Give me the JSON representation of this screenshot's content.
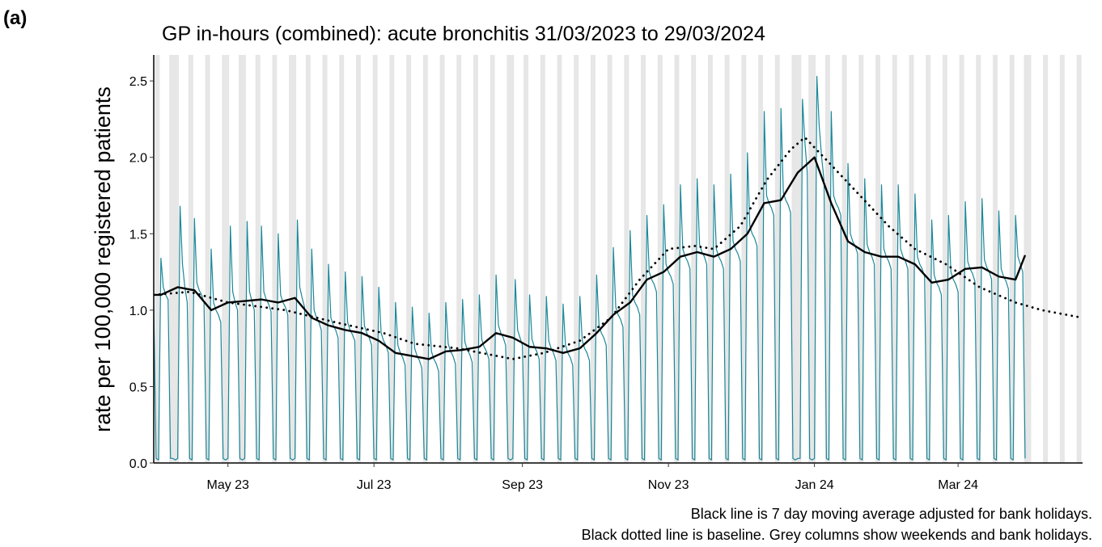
{
  "chart_data": {
    "type": "line",
    "panel_label": "(a)",
    "title": "GP in-hours (combined): acute bronchitis 31/03/2023 to 29/03/2024",
    "y_label": "rate per 100,000 registered patients",
    "annotations": [
      "Black line is 7 day moving average adjusted for bank holidays.",
      "Black dotted line is baseline. Grey columns show weekends and bank holidays."
    ],
    "xlim": [
      "2023-03-31",
      "2024-04-22"
    ],
    "xticks": [
      {
        "value": "2023-05-01",
        "label": "May 23"
      },
      {
        "value": "2023-07-01",
        "label": "Jul 23"
      },
      {
        "value": "2023-09-01",
        "label": "Sep 23"
      },
      {
        "value": "2023-11-01",
        "label": "Nov 23"
      },
      {
        "value": "2024-01-01",
        "label": "Jan 24"
      },
      {
        "value": "2024-03-01",
        "label": "Mar 24"
      }
    ],
    "ylim": [
      0,
      2.67
    ],
    "yticks": [
      {
        "value": 0,
        "label": "0.0"
      },
      0.5,
      {
        "value": 1,
        "label": "1.0"
      },
      1.5,
      {
        "value": 2,
        "label": "2.0"
      },
      2.5
    ],
    "weekend_color": "#e6e6e6",
    "bank_holidays": [
      "2023-04-07",
      "2023-04-10",
      "2023-05-01",
      "2023-05-08",
      "2023-05-29",
      "2023-08-28",
      "2023-12-25",
      "2023-12-26",
      "2024-01-01",
      "2024-03-29"
    ],
    "series": [
      {
        "color": "#1b8798",
        "line_style": "solid",
        "width": 1.2,
        "x": [
          "2023-03-31",
          "2023-04-01",
          "2023-04-02",
          "2023-04-03",
          "2023-04-04",
          "2023-04-05",
          "2023-04-06",
          "2023-04-07",
          "2023-04-08",
          "2023-04-09",
          "2023-04-10",
          "2023-04-11",
          "2023-04-12",
          "2023-04-13",
          "2023-04-14",
          "2023-04-15",
          "2023-04-16",
          "2023-04-17",
          "2023-04-18",
          "2023-04-19",
          "2023-04-20",
          "2023-04-21",
          "2023-04-22",
          "2023-04-23",
          "2023-04-24",
          "2023-04-25",
          "2023-04-26",
          "2023-04-27",
          "2023-04-28",
          "2023-04-29",
          "2023-04-30",
          "2023-05-01",
          "2023-05-02",
          "2023-05-03",
          "2023-05-04",
          "2023-05-05",
          "2023-05-06",
          "2023-05-07",
          "2023-05-08",
          "2023-05-09",
          "2023-05-10",
          "2023-05-11",
          "2023-05-12",
          "2023-05-13",
          "2023-05-14",
          "2023-05-15",
          "2023-05-16",
          "2023-05-17",
          "2023-05-18",
          "2023-05-19",
          "2023-05-20",
          "2023-05-21",
          "2023-05-22",
          "2023-05-23",
          "2023-05-24",
          "2023-05-25",
          "2023-05-26",
          "2023-05-27",
          "2023-05-28",
          "2023-05-29",
          "2023-05-30",
          "2023-05-31",
          "2023-06-01",
          "2023-06-02",
          "2023-06-03",
          "2023-06-04",
          "2023-06-05",
          "2023-06-06",
          "2023-06-07",
          "2023-06-08",
          "2023-06-09",
          "2023-06-10",
          "2023-06-11",
          "2023-06-12",
          "2023-06-13",
          "2023-06-14",
          "2023-06-15",
          "2023-06-16",
          "2023-06-17",
          "2023-06-18",
          "2023-06-19",
          "2023-06-20",
          "2023-06-21",
          "2023-06-22",
          "2023-06-23",
          "2023-06-24",
          "2023-06-25",
          "2023-06-26",
          "2023-06-27",
          "2023-06-28",
          "2023-06-29",
          "2023-06-30",
          "2023-07-01",
          "2023-07-02",
          "2023-07-03",
          "2023-07-04",
          "2023-07-05",
          "2023-07-06",
          "2023-07-07",
          "2023-07-08",
          "2023-07-09",
          "2023-07-10",
          "2023-07-11",
          "2023-07-12",
          "2023-07-13",
          "2023-07-14",
          "2023-07-15",
          "2023-07-16",
          "2023-07-17",
          "2023-07-18",
          "2023-07-19",
          "2023-07-20",
          "2023-07-21",
          "2023-07-22",
          "2023-07-23",
          "2023-07-24",
          "2023-07-25",
          "2023-07-26",
          "2023-07-27",
          "2023-07-28",
          "2023-07-29",
          "2023-07-30",
          "2023-07-31",
          "2023-08-01",
          "2023-08-02",
          "2023-08-03",
          "2023-08-04",
          "2023-08-05",
          "2023-08-06",
          "2023-08-07",
          "2023-08-08",
          "2023-08-09",
          "2023-08-10",
          "2023-08-11",
          "2023-08-12",
          "2023-08-13",
          "2023-08-14",
          "2023-08-15",
          "2023-08-16",
          "2023-08-17",
          "2023-08-18",
          "2023-08-19",
          "2023-08-20",
          "2023-08-21",
          "2023-08-22",
          "2023-08-23",
          "2023-08-24",
          "2023-08-25",
          "2023-08-26",
          "2023-08-27",
          "2023-08-28",
          "2023-08-29",
          "2023-08-30",
          "2023-08-31",
          "2023-09-01",
          "2023-09-02",
          "2023-09-03",
          "2023-09-04",
          "2023-09-05",
          "2023-09-06",
          "2023-09-07",
          "2023-09-08",
          "2023-09-09",
          "2023-09-10",
          "2023-09-11",
          "2023-09-12",
          "2023-09-13",
          "2023-09-14",
          "2023-09-15",
          "2023-09-16",
          "2023-09-17",
          "2023-09-18",
          "2023-09-19",
          "2023-09-20",
          "2023-09-21",
          "2023-09-22",
          "2023-09-23",
          "2023-09-24",
          "2023-09-25",
          "2023-09-26",
          "2023-09-27",
          "2023-09-28",
          "2023-09-29",
          "2023-09-30",
          "2023-10-01",
          "2023-10-02",
          "2023-10-03",
          "2023-10-04",
          "2023-10-05",
          "2023-10-06",
          "2023-10-07",
          "2023-10-08",
          "2023-10-09",
          "2023-10-10",
          "2023-10-11",
          "2023-10-12",
          "2023-10-13",
          "2023-10-14",
          "2023-10-15",
          "2023-10-16",
          "2023-10-17",
          "2023-10-18",
          "2023-10-19",
          "2023-10-20",
          "2023-10-21",
          "2023-10-22",
          "2023-10-23",
          "2023-10-24",
          "2023-10-25",
          "2023-10-26",
          "2023-10-27",
          "2023-10-28",
          "2023-10-29",
          "2023-10-30",
          "2023-10-31",
          "2023-11-01",
          "2023-11-02",
          "2023-11-03",
          "2023-11-04",
          "2023-11-05",
          "2023-11-06",
          "2023-11-07",
          "2023-11-08",
          "2023-11-09",
          "2023-11-10",
          "2023-11-11",
          "2023-11-12",
          "2023-11-13",
          "2023-11-14",
          "2023-11-15",
          "2023-11-16",
          "2023-11-17",
          "2023-11-18",
          "2023-11-19",
          "2023-11-20",
          "2023-11-21",
          "2023-11-22",
          "2023-11-23",
          "2023-11-24",
          "2023-11-25",
          "2023-11-26",
          "2023-11-27",
          "2023-11-28",
          "2023-11-29",
          "2023-11-30",
          "2023-12-01",
          "2023-12-02",
          "2023-12-03",
          "2023-12-04",
          "2023-12-05",
          "2023-12-06",
          "2023-12-07",
          "2023-12-08",
          "2023-12-09",
          "2023-12-10",
          "2023-12-11",
          "2023-12-12",
          "2023-12-13",
          "2023-12-14",
          "2023-12-15",
          "2023-12-16",
          "2023-12-17",
          "2023-12-18",
          "2023-12-19",
          "2023-12-20",
          "2023-12-21",
          "2023-12-22",
          "2023-12-23",
          "2023-12-24",
          "2023-12-25",
          "2023-12-26",
          "2023-12-27",
          "2023-12-28",
          "2023-12-29",
          "2023-12-30",
          "2023-12-31",
          "2024-01-01",
          "2024-01-02",
          "2024-01-03",
          "2024-01-04",
          "2024-01-05",
          "2024-01-06",
          "2024-01-07",
          "2024-01-08",
          "2024-01-09",
          "2024-01-10",
          "2024-01-11",
          "2024-01-12",
          "2024-01-13",
          "2024-01-14",
          "2024-01-15",
          "2024-01-16",
          "2024-01-17",
          "2024-01-18",
          "2024-01-19",
          "2024-01-20",
          "2024-01-21",
          "2024-01-22",
          "2024-01-23",
          "2024-01-24",
          "2024-01-25",
          "2024-01-26",
          "2024-01-27",
          "2024-01-28",
          "2024-01-29",
          "2024-01-30",
          "2024-01-31",
          "2024-02-01",
          "2024-02-02",
          "2024-02-03",
          "2024-02-04",
          "2024-02-05",
          "2024-02-06",
          "2024-02-07",
          "2024-02-08",
          "2024-02-09",
          "2024-02-10",
          "2024-02-11",
          "2024-02-12",
          "2024-02-13",
          "2024-02-14",
          "2024-02-15",
          "2024-02-16",
          "2024-02-17",
          "2024-02-18",
          "2024-02-19",
          "2024-02-20",
          "2024-02-21",
          "2024-02-22",
          "2024-02-23",
          "2024-02-24",
          "2024-02-25",
          "2024-02-26",
          "2024-02-27",
          "2024-02-28",
          "2024-02-29",
          "2024-03-01",
          "2024-03-02",
          "2024-03-03",
          "2024-03-04",
          "2024-03-05",
          "2024-03-06",
          "2024-03-07",
          "2024-03-08",
          "2024-03-09",
          "2024-03-10",
          "2024-03-11",
          "2024-03-12",
          "2024-03-13",
          "2024-03-14",
          "2024-03-15",
          "2024-03-16",
          "2024-03-17",
          "2024-03-18",
          "2024-03-19",
          "2024-03-20",
          "2024-03-21",
          "2024-03-22",
          "2024-03-23",
          "2024-03-24",
          "2024-03-25",
          "2024-03-26",
          "2024-03-27",
          "2024-03-28",
          "2024-03-29"
        ],
        "values": [
          1.02,
          0.03,
          0.02,
          1.34,
          1.15,
          1.1,
          1.07,
          0.03,
          0.03,
          0.02,
          0.03,
          1.68,
          1.3,
          1.15,
          1.05,
          0.03,
          0.02,
          1.6,
          1.18,
          1.13,
          1.1,
          1.05,
          0.03,
          0.02,
          1.4,
          1.05,
          1.0,
          0.97,
          0.92,
          0.03,
          0.02,
          0.03,
          1.55,
          1.12,
          1.05,
          1.0,
          0.03,
          0.02,
          0.03,
          1.58,
          1.12,
          1.06,
          1.0,
          0.03,
          0.02,
          1.55,
          1.12,
          1.07,
          1.04,
          0.99,
          0.03,
          0.02,
          1.5,
          1.1,
          1.05,
          1.02,
          0.97,
          0.03,
          0.02,
          0.03,
          1.59,
          1.15,
          1.08,
          1.02,
          0.03,
          0.02,
          1.4,
          1.0,
          0.95,
          0.92,
          0.87,
          0.03,
          0.02,
          1.3,
          0.95,
          0.9,
          0.87,
          0.82,
          0.03,
          0.02,
          1.25,
          0.92,
          0.87,
          0.84,
          0.8,
          0.03,
          0.02,
          1.22,
          0.9,
          0.85,
          0.82,
          0.77,
          0.03,
          0.02,
          1.15,
          0.85,
          0.8,
          0.77,
          0.72,
          0.03,
          0.02,
          1.05,
          0.77,
          0.72,
          0.69,
          0.64,
          0.03,
          0.02,
          1.02,
          0.75,
          0.7,
          0.67,
          0.62,
          0.03,
          0.02,
          0.98,
          0.73,
          0.68,
          0.65,
          0.6,
          0.03,
          0.02,
          1.05,
          0.78,
          0.73,
          0.7,
          0.65,
          0.03,
          0.02,
          1.07,
          0.79,
          0.74,
          0.71,
          0.66,
          0.03,
          0.02,
          1.1,
          0.81,
          0.76,
          0.73,
          0.68,
          0.03,
          0.02,
          1.23,
          0.9,
          0.85,
          0.82,
          0.77,
          0.03,
          0.02,
          0.03,
          1.2,
          0.87,
          0.82,
          0.77,
          0.03,
          0.02,
          1.1,
          0.81,
          0.76,
          0.73,
          0.68,
          0.03,
          0.02,
          1.09,
          0.8,
          0.75,
          0.72,
          0.67,
          0.03,
          0.02,
          1.04,
          0.77,
          0.72,
          0.69,
          0.64,
          0.03,
          0.02,
          1.09,
          0.8,
          0.75,
          0.72,
          0.67,
          0.03,
          0.02,
          1.23,
          0.9,
          0.85,
          0.82,
          0.77,
          0.03,
          0.02,
          1.41,
          1.02,
          0.97,
          0.94,
          0.89,
          0.03,
          0.02,
          1.52,
          1.1,
          1.05,
          1.02,
          0.97,
          0.03,
          0.02,
          1.62,
          1.25,
          1.2,
          1.17,
          1.12,
          0.03,
          0.02,
          1.69,
          1.3,
          1.25,
          1.22,
          1.17,
          0.03,
          0.02,
          1.82,
          1.4,
          1.35,
          1.32,
          1.27,
          0.03,
          0.02,
          1.86,
          1.43,
          1.38,
          1.35,
          1.3,
          0.03,
          0.02,
          1.82,
          1.4,
          1.35,
          1.32,
          1.27,
          0.03,
          0.02,
          1.89,
          1.45,
          1.4,
          1.37,
          1.32,
          0.03,
          0.02,
          2.03,
          1.55,
          1.5,
          1.47,
          1.42,
          0.03,
          0.02,
          2.3,
          1.75,
          1.7,
          1.67,
          1.62,
          0.03,
          0.02,
          2.32,
          1.77,
          1.72,
          1.69,
          1.64,
          0.03,
          0.02,
          0.03,
          0.03,
          2.38,
          2.1,
          1.9,
          0.03,
          0.02,
          0.03,
          2.53,
          2.2,
          2.0,
          1.85,
          0.03,
          0.02,
          2.3,
          1.75,
          1.7,
          1.67,
          1.62,
          0.03,
          0.02,
          1.96,
          1.5,
          1.45,
          1.42,
          1.37,
          0.03,
          0.02,
          1.86,
          1.43,
          1.38,
          1.35,
          1.3,
          0.03,
          0.02,
          1.82,
          1.4,
          1.35,
          1.32,
          1.27,
          0.03,
          0.02,
          1.82,
          1.4,
          1.35,
          1.32,
          1.27,
          0.03,
          0.02,
          1.76,
          1.35,
          1.3,
          1.27,
          1.22,
          0.03,
          0.02,
          1.59,
          1.23,
          1.18,
          1.15,
          1.1,
          0.03,
          0.02,
          1.62,
          1.25,
          1.2,
          1.17,
          1.12,
          0.03,
          0.02,
          1.71,
          1.32,
          1.27,
          1.24,
          1.19,
          0.03,
          0.02,
          1.73,
          1.33,
          1.28,
          1.25,
          1.2,
          0.03,
          0.02,
          1.65,
          1.27,
          1.22,
          1.19,
          1.14,
          0.03,
          0.02,
          1.62,
          1.35,
          1.3,
          1.25,
          0.03
        ]
      },
      {
        "color": "#000000",
        "line_style": "solid",
        "width": 2.4,
        "x": [
          "2023-03-31",
          "2023-04-03",
          "2023-04-10",
          "2023-04-17",
          "2023-04-24",
          "2023-05-01",
          "2023-05-08",
          "2023-05-15",
          "2023-05-22",
          "2023-05-29",
          "2023-06-05",
          "2023-06-12",
          "2023-06-19",
          "2023-06-26",
          "2023-07-03",
          "2023-07-10",
          "2023-07-17",
          "2023-07-24",
          "2023-07-31",
          "2023-08-07",
          "2023-08-14",
          "2023-08-21",
          "2023-08-28",
          "2023-09-04",
          "2023-09-11",
          "2023-09-18",
          "2023-09-25",
          "2023-10-02",
          "2023-10-09",
          "2023-10-16",
          "2023-10-23",
          "2023-10-30",
          "2023-11-06",
          "2023-11-13",
          "2023-11-20",
          "2023-11-27",
          "2023-12-04",
          "2023-12-11",
          "2023-12-18",
          "2023-12-25",
          "2024-01-01",
          "2024-01-08",
          "2024-01-15",
          "2024-01-22",
          "2024-01-29",
          "2024-02-05",
          "2024-02-12",
          "2024-02-19",
          "2024-02-26",
          "2024-03-04",
          "2024-03-11",
          "2024-03-18",
          "2024-03-25",
          "2024-03-29"
        ],
        "values": [
          1.1,
          1.1,
          1.15,
          1.13,
          1.0,
          1.05,
          1.06,
          1.07,
          1.05,
          1.08,
          0.95,
          0.9,
          0.87,
          0.85,
          0.8,
          0.72,
          0.7,
          0.68,
          0.73,
          0.74,
          0.76,
          0.85,
          0.82,
          0.76,
          0.75,
          0.72,
          0.75,
          0.85,
          0.97,
          1.05,
          1.2,
          1.25,
          1.35,
          1.38,
          1.35,
          1.4,
          1.5,
          1.7,
          1.72,
          1.9,
          2.0,
          1.7,
          1.45,
          1.38,
          1.35,
          1.35,
          1.3,
          1.18,
          1.2,
          1.27,
          1.28,
          1.22,
          1.2,
          1.36
        ]
      },
      {
        "color": "#000000",
        "line_style": "dotted",
        "width": 2,
        "x": [
          "2023-03-31",
          "2023-04-15",
          "2023-05-01",
          "2023-05-25",
          "2023-06-15",
          "2023-07-05",
          "2023-07-18",
          "2023-08-05",
          "2023-08-28",
          "2023-09-10",
          "2023-09-25",
          "2023-10-08",
          "2023-10-20",
          "2023-11-01",
          "2023-11-12",
          "2023-11-20",
          "2023-12-01",
          "2023-12-12",
          "2023-12-22",
          "2023-12-28",
          "2024-01-08",
          "2024-01-20",
          "2024-02-01",
          "2024-02-12",
          "2024-02-25",
          "2024-03-10",
          "2024-03-25",
          "2024-04-05",
          "2024-04-22"
        ],
        "values": [
          1.1,
          1.12,
          1.05,
          1.0,
          0.92,
          0.85,
          0.78,
          0.75,
          0.68,
          0.72,
          0.8,
          0.95,
          1.2,
          1.4,
          1.42,
          1.4,
          1.55,
          1.85,
          2.05,
          2.13,
          1.95,
          1.75,
          1.55,
          1.4,
          1.3,
          1.15,
          1.05,
          1.0,
          0.95
        ]
      }
    ]
  }
}
